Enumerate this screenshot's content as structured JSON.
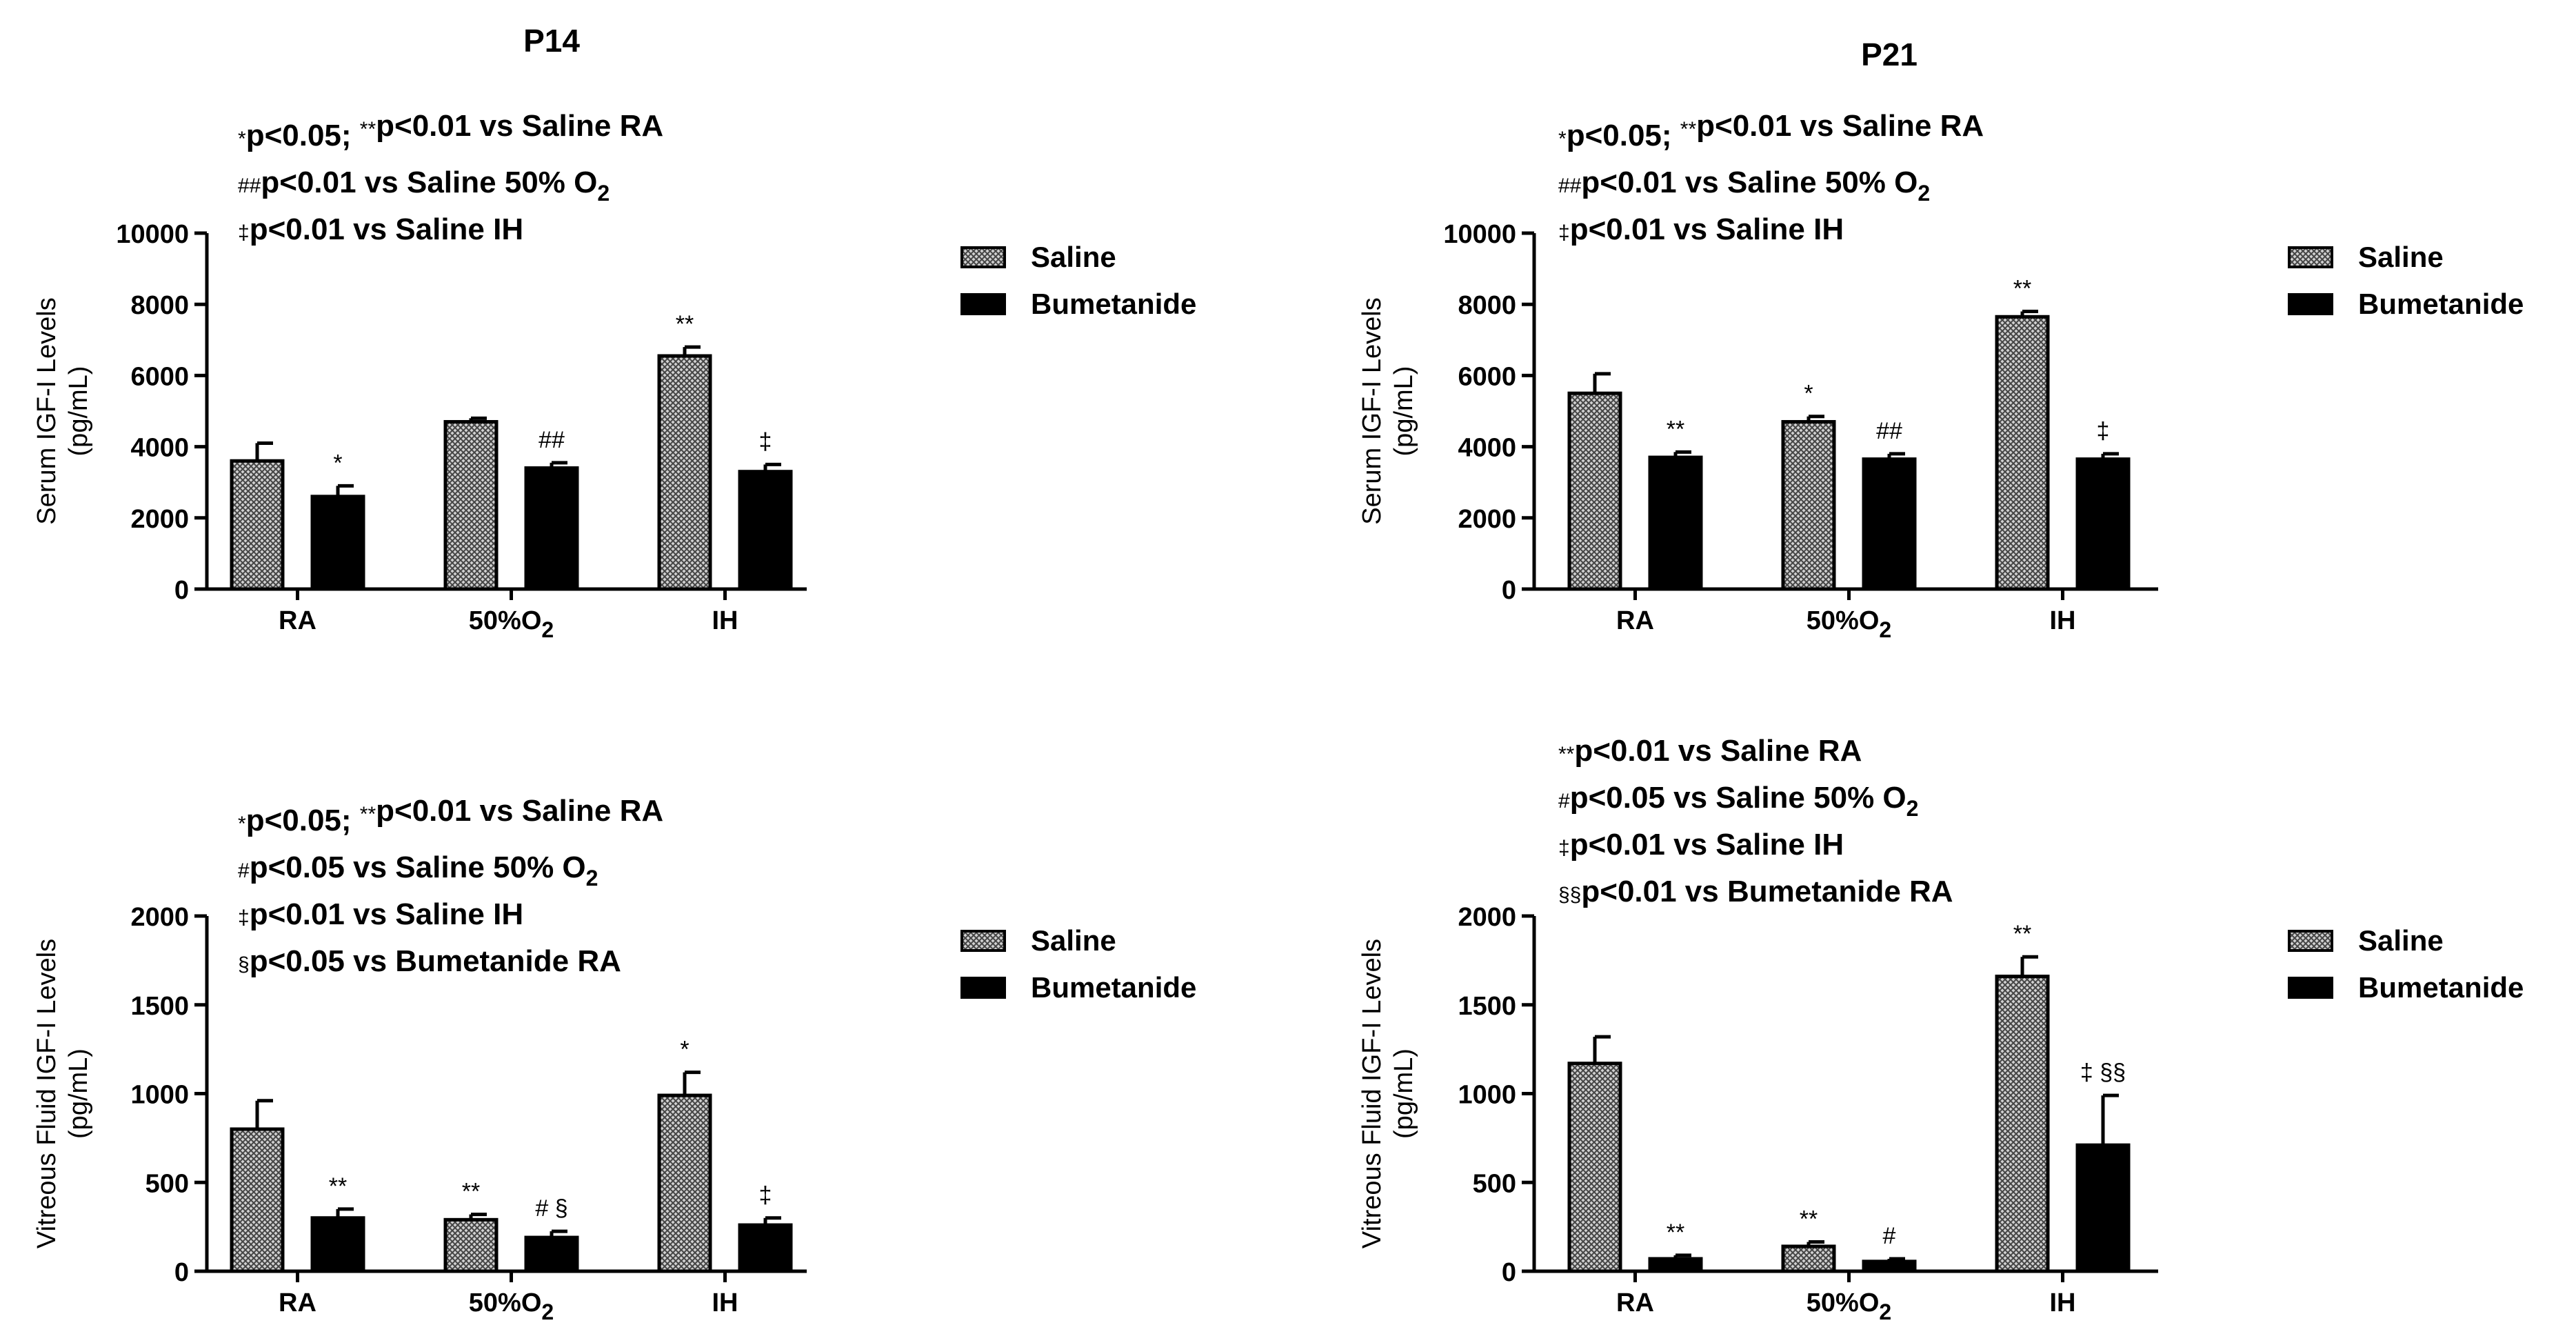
{
  "figure": {
    "colors": {
      "saline_fill": "#d0d0d0",
      "saline_pattern": "#444444",
      "bumetanide_fill": "#000000",
      "ink": "#000000"
    }
  },
  "chart_data": [
    {
      "id": "p14-serum",
      "type": "bar",
      "title": "P14",
      "ylabel": [
        "Serum IGF-I Levels",
        "(pg/mL)"
      ],
      "categories": [
        "RA",
        "50%O₂",
        "IH"
      ],
      "ylim": [
        0,
        10000
      ],
      "yticks": [
        0,
        2000,
        4000,
        6000,
        8000,
        10000
      ],
      "series": [
        {
          "name": "Saline",
          "values": [
            3600,
            4700,
            6550
          ],
          "errors": [
            500,
            100,
            250
          ],
          "labels": [
            "",
            "",
            "**"
          ]
        },
        {
          "name": "Bumetanide",
          "values": [
            2600,
            3400,
            3300
          ],
          "errors": [
            300,
            150,
            200
          ],
          "labels": [
            "*",
            "##",
            "‡"
          ]
        }
      ],
      "legend": [
        "Saline",
        "Bumetanide"
      ],
      "annotations": [
        "*p<0.05; **p<0.01 vs Saline RA",
        "##p<0.01 vs Saline 50% O₂",
        "‡p<0.01 vs Saline IH"
      ]
    },
    {
      "id": "p21-serum",
      "type": "bar",
      "title": "P21",
      "ylabel": [
        "Serum IGF-I Levels",
        "(pg/mL)"
      ],
      "categories": [
        "RA",
        "50%O₂",
        "IH"
      ],
      "ylim": [
        0,
        10000
      ],
      "yticks": [
        0,
        2000,
        4000,
        6000,
        8000,
        10000
      ],
      "series": [
        {
          "name": "Saline",
          "values": [
            5500,
            4700,
            7650
          ],
          "errors": [
            550,
            150,
            150
          ],
          "labels": [
            "",
            "*",
            "**"
          ]
        },
        {
          "name": "Bumetanide",
          "values": [
            3700,
            3650,
            3650
          ],
          "errors": [
            150,
            150,
            150
          ],
          "labels": [
            "**",
            "##",
            "‡"
          ]
        }
      ],
      "legend": [
        "Saline",
        "Bumetanide"
      ],
      "annotations": [
        "*p<0.05; **p<0.01 vs Saline RA",
        "##p<0.01 vs Saline 50% O₂",
        "‡p<0.01 vs Saline IH"
      ]
    },
    {
      "id": "p14-vitreous",
      "type": "bar",
      "title": "",
      "ylabel": [
        "Vitreous Fluid IGF-I Levels",
        "(pg/mL)"
      ],
      "categories": [
        "RA",
        "50%O₂",
        "IH"
      ],
      "ylim": [
        0,
        2000
      ],
      "yticks": [
        0,
        500,
        1000,
        1500,
        2000
      ],
      "series": [
        {
          "name": "Saline",
          "values": [
            800,
            290,
            990
          ],
          "errors": [
            160,
            30,
            130
          ],
          "labels": [
            "",
            "**",
            "*"
          ]
        },
        {
          "name": "Bumetanide",
          "values": [
            300,
            190,
            260
          ],
          "errors": [
            50,
            35,
            40
          ],
          "labels": [
            "**",
            "# §",
            "‡"
          ]
        }
      ],
      "legend": [
        "Saline",
        "Bumetanide"
      ],
      "annotations": [
        "*p<0.05; **p<0.01 vs Saline RA",
        "#p<0.05 vs Saline 50% O₂",
        "‡p<0.01 vs Saline IH",
        "§p<0.05 vs Bumetanide RA"
      ]
    },
    {
      "id": "p21-vitreous",
      "type": "bar",
      "title": "",
      "ylabel": [
        "Vitreous Fluid IGF-I Levels",
        "(pg/mL)"
      ],
      "categories": [
        "RA",
        "50%O₂",
        "IH"
      ],
      "ylim": [
        0,
        2000
      ],
      "yticks": [
        0,
        500,
        1000,
        1500,
        2000
      ],
      "series": [
        {
          "name": "Saline",
          "values": [
            1170,
            140,
            1660
          ],
          "errors": [
            150,
            25,
            110
          ],
          "labels": [
            "",
            "**",
            "**"
          ]
        },
        {
          "name": "Bumetanide",
          "values": [
            70,
            55,
            710
          ],
          "errors": [
            20,
            15,
            280
          ],
          "labels": [
            "**",
            "#",
            "‡ §§"
          ]
        }
      ],
      "legend": [
        "Saline",
        "Bumetanide"
      ],
      "annotations": [
        "**p<0.01 vs Saline RA",
        "#p<0.05 vs Saline 50% O₂",
        "‡p<0.01 vs Saline IH",
        "§§p<0.01 vs Bumetanide RA"
      ]
    }
  ]
}
